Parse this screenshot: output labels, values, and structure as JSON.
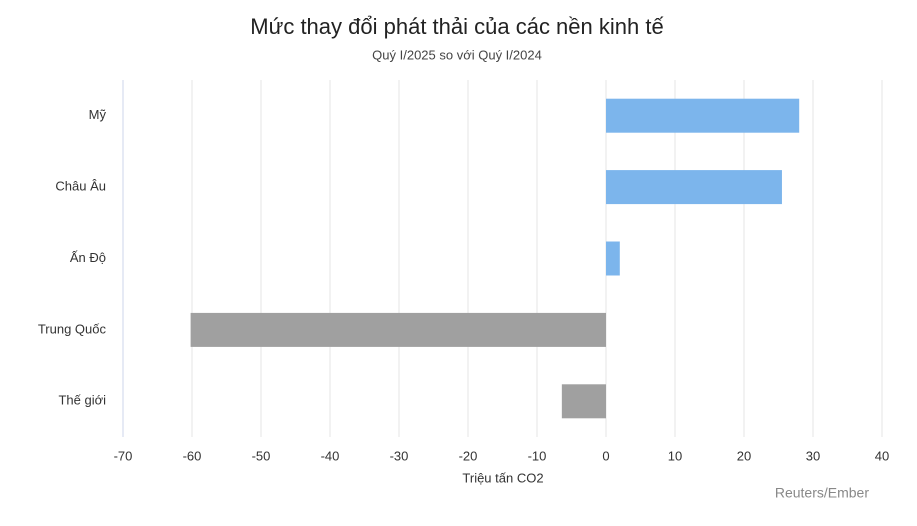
{
  "chart_data": {
    "type": "hbar",
    "title": "Mức thay đổi phát thải của các nền kinh tế",
    "subtitle": "Quý I/2025 so với Quý I/2024",
    "x_label": "Triệu tấn CO2",
    "source": "Reuters/Ember",
    "categories": [
      "Mỹ",
      "Châu Âu",
      "Ấn Độ",
      "Trung Quốc",
      "Thế giới"
    ],
    "values": [
      28,
      25.5,
      2,
      -60.2,
      -6.4
    ],
    "colors": [
      "#7cb5ec",
      "#7cb5ec",
      "#7cb5ec",
      "#a0a0a0",
      "#a0a0a0"
    ],
    "xlim": [
      -70,
      40
    ],
    "xticks": [
      -70,
      -60,
      -50,
      -40,
      -30,
      -20,
      -10,
      0,
      10,
      20,
      30,
      40
    ],
    "grid": true
  }
}
